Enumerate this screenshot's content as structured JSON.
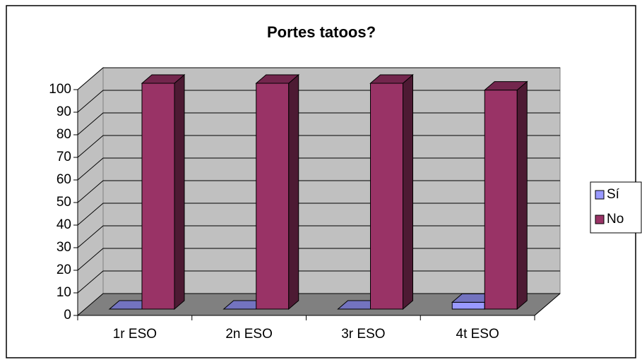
{
  "chart_data": {
    "type": "bar3d",
    "title": "Portes tatoos?",
    "categories": [
      "1r ESO",
      "2n ESO",
      "3r ESO",
      "4t ESO"
    ],
    "series": [
      {
        "name": "Sí",
        "color": "#9999ff",
        "values": [
          0,
          0,
          0,
          3
        ]
      },
      {
        "name": "No",
        "color": "#993366",
        "values": [
          100,
          100,
          100,
          97
        ]
      }
    ],
    "ylim": [
      0,
      100
    ],
    "yticks": [
      0,
      10,
      20,
      30,
      40,
      50,
      60,
      70,
      80,
      90,
      100
    ],
    "grid": true,
    "legend": "right"
  }
}
